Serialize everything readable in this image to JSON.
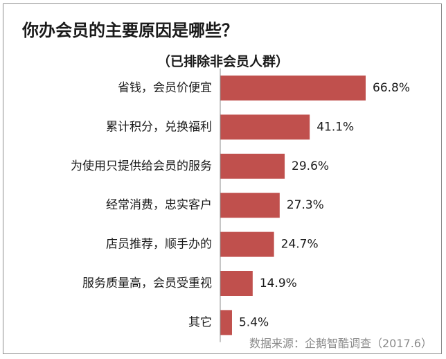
{
  "title": "你办会员的主要原因是哪些？",
  "subtitle": "（已排除非会员人群）",
  "source": "数据来源：企鹅智酷调查（2017.6）",
  "chart_data": {
    "type": "bar",
    "orientation": "horizontal",
    "title": "你办会员的主要原因是哪些？",
    "subtitle": "（已排除非会员人群）",
    "categories": [
      "省钱，会员价便宜",
      "累计积分，兑换福利",
      "为使用只提供给会员的服务",
      "经常消费，忠实客户",
      "店员推荐，顺手办的",
      "服务质量高，会员受重视",
      "其它"
    ],
    "values": [
      66.8,
      41.1,
      29.6,
      27.3,
      24.7,
      14.9,
      5.4
    ],
    "value_labels": [
      "66.8%",
      "41.1%",
      "29.6%",
      "27.3%",
      "24.7%",
      "14.9%",
      "5.4%"
    ],
    "xlabel": "",
    "ylabel": "",
    "xlim": [
      0,
      66.8
    ],
    "grid": false,
    "legend": "none",
    "bar_color": "#c0504d",
    "axis_color": "#8c8c8c"
  }
}
